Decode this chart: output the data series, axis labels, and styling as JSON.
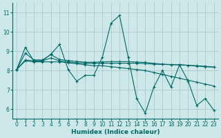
{
  "xlabel": "Humidex (Indice chaleur)",
  "ylabel": "",
  "xlim": [
    -0.5,
    23.5
  ],
  "ylim": [
    5.5,
    11.5
  ],
  "yticks": [
    6,
    7,
    8,
    9,
    10,
    11
  ],
  "xticks": [
    0,
    1,
    2,
    3,
    4,
    5,
    6,
    7,
    8,
    9,
    10,
    11,
    12,
    13,
    14,
    15,
    16,
    17,
    18,
    19,
    20,
    21,
    22,
    23
  ],
  "bg_color": "#cce8e8",
  "grid_color": "#b0cccc",
  "line_color": "#006666",
  "series": [
    [
      8.05,
      9.2,
      8.5,
      8.5,
      8.85,
      9.35,
      8.05,
      7.45,
      7.75,
      7.75,
      8.7,
      10.45,
      10.85,
      8.7,
      6.55,
      5.8,
      7.15,
      8.0,
      7.15,
      8.3,
      7.45,
      6.2,
      6.55,
      5.95
    ],
    [
      8.05,
      8.5,
      8.45,
      8.45,
      8.45,
      8.45,
      8.4,
      8.35,
      8.3,
      8.25,
      8.25,
      8.2,
      8.15,
      8.1,
      8.05,
      8.0,
      7.9,
      7.8,
      7.7,
      7.6,
      7.5,
      7.4,
      7.3,
      7.2
    ],
    [
      8.05,
      8.55,
      8.5,
      8.5,
      8.65,
      8.5,
      8.45,
      8.4,
      8.38,
      8.38,
      8.38,
      8.38,
      8.38,
      8.38,
      8.38,
      8.36,
      8.33,
      8.32,
      8.3,
      8.3,
      8.27,
      8.25,
      8.22,
      8.18
    ],
    [
      8.05,
      8.9,
      8.55,
      8.55,
      8.82,
      8.57,
      8.52,
      8.47,
      8.43,
      8.43,
      8.45,
      8.46,
      8.46,
      8.46,
      8.44,
      8.42,
      8.37,
      8.33,
      8.31,
      8.3,
      8.27,
      8.23,
      8.2,
      8.17
    ]
  ]
}
